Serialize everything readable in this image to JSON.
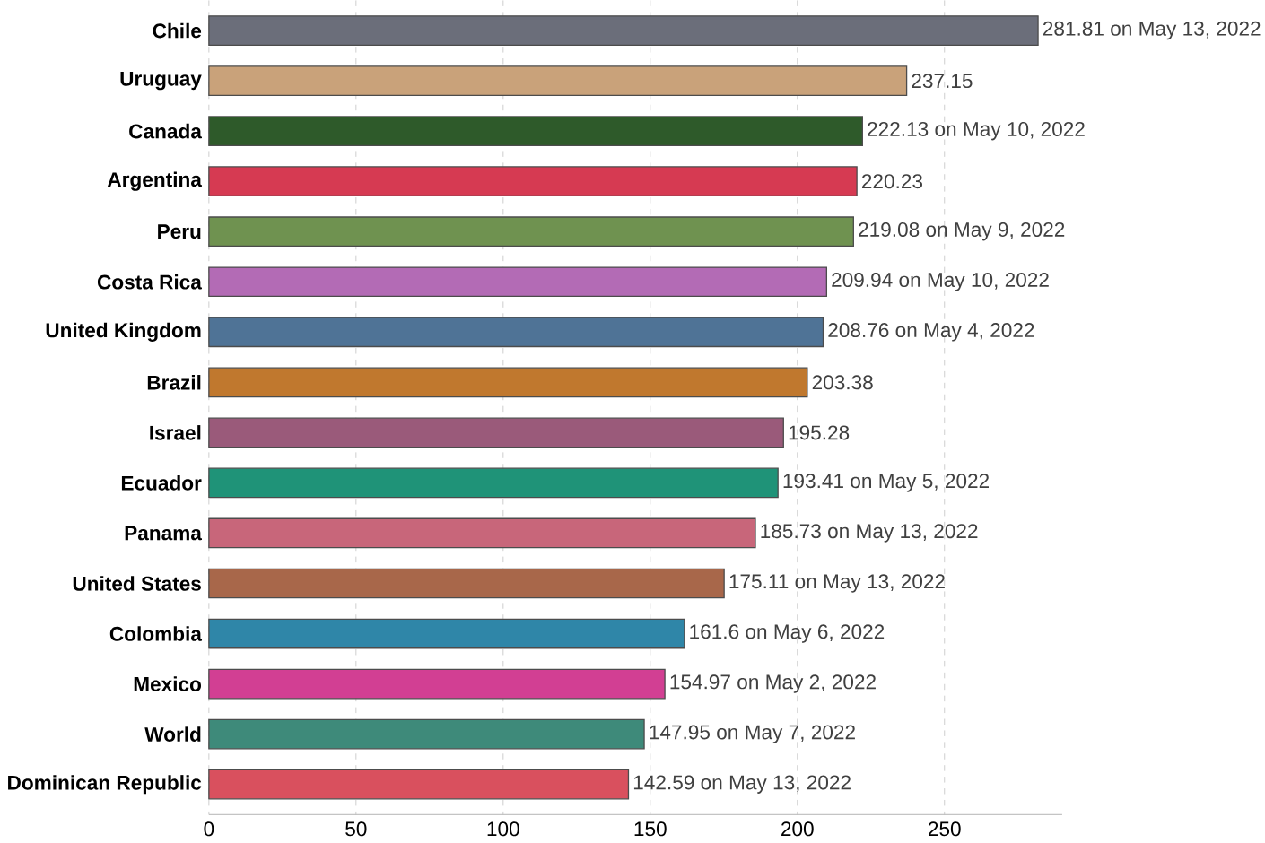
{
  "chart_data": {
    "type": "bar",
    "orientation": "horizontal",
    "categories": [
      "Chile",
      "Uruguay",
      "Canada",
      "Argentina",
      "Peru",
      "Costa Rica",
      "United Kingdom",
      "Brazil",
      "Israel",
      "Ecuador",
      "Panama",
      "United States",
      "Colombia",
      "Mexico",
      "World",
      "Dominican Republic"
    ],
    "values": [
      281.81,
      237.15,
      222.13,
      220.23,
      219.08,
      209.94,
      208.76,
      203.38,
      195.28,
      193.41,
      185.73,
      175.11,
      161.6,
      154.97,
      147.95,
      142.59
    ],
    "value_labels": [
      "281.81 on May 13, 2022",
      "237.15",
      "222.13 on May 10, 2022",
      "220.23",
      "219.08 on May 9, 2022",
      "209.94 on May 10, 2022",
      "208.76 on May 4, 2022",
      "203.38",
      "195.28",
      "193.41 on May 5, 2022",
      "185.73 on May 13, 2022",
      "175.11 on May 13, 2022",
      "161.6 on May 6, 2022",
      "154.97 on May 2, 2022",
      "147.95 on May 7, 2022",
      "142.59 on May 13, 2022"
    ],
    "colors": [
      "#6b6e7a",
      "#c9a27a",
      "#2e5a2a",
      "#d63a52",
      "#6f9250",
      "#b36bb5",
      "#4f7396",
      "#c0782e",
      "#9a5a7a",
      "#1f9378",
      "#c8667a",
      "#a8674a",
      "#2f86a8",
      "#d23f93",
      "#3e8a7a",
      "#d9505e"
    ],
    "xlim": [
      0,
      290
    ],
    "xticks": [
      0,
      50,
      100,
      150,
      200,
      250
    ],
    "grid": "x"
  }
}
